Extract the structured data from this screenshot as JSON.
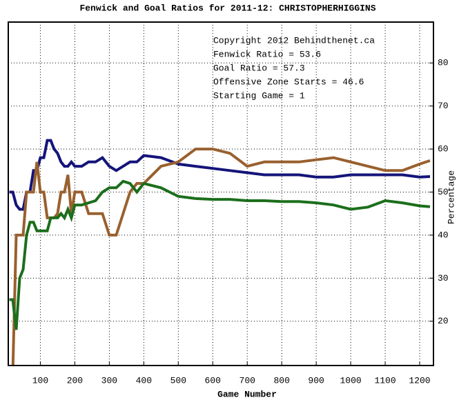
{
  "chart_data": {
    "type": "line",
    "title": "Fenwick and Goal Ratios for 2011-12: CHRISTOPHERHIGGINS",
    "x_label": "Game Number",
    "y_label": "Percentage",
    "annotations": [
      {
        "text": "Copyright 2012 Behindthenet.ca",
        "color": "#000000"
      },
      {
        "text": "Fenwick Ratio = 53.6",
        "color": "#14147a"
      },
      {
        "text": "Goal Ratio = 57.3",
        "color": "#99602e"
      },
      {
        "text": "Offensive Zone Starts = 46.6",
        "color": "#1c6e1c"
      },
      {
        "text": "Starting Game = 1",
        "color": "#000000"
      }
    ],
    "x": [
      10,
      20,
      30,
      40,
      50,
      60,
      70,
      80,
      90,
      100,
      110,
      120,
      130,
      140,
      150,
      160,
      170,
      180,
      190,
      200,
      220,
      240,
      260,
      280,
      300,
      320,
      340,
      360,
      380,
      400,
      450,
      500,
      550,
      600,
      650,
      700,
      750,
      800,
      850,
      900,
      950,
      1000,
      1050,
      1100,
      1150,
      1200,
      1230
    ],
    "series": [
      {
        "name": "Fenwick Ratio",
        "color": "#14147a",
        "values": [
          50,
          50,
          47,
          46,
          46,
          50,
          50,
          55,
          55,
          58,
          58,
          62,
          62,
          60,
          59,
          57,
          56,
          56,
          57,
          56,
          56,
          57,
          57,
          58,
          56,
          55,
          56,
          57,
          57,
          58.5,
          58,
          56.5,
          56,
          55.5,
          55,
          54.5,
          54,
          54,
          54,
          53.5,
          53.5,
          54,
          54,
          54,
          54,
          53.5,
          53.6
        ]
      },
      {
        "name": "Goal Ratio",
        "color": "#99602e",
        "values": [
          8,
          8,
          40,
          40,
          40,
          50,
          50,
          50,
          57,
          50,
          50,
          44,
          44,
          44,
          45,
          50,
          50,
          54,
          45,
          50,
          50,
          45,
          45,
          45,
          40,
          40,
          45,
          50,
          52,
          52,
          56,
          57,
          60,
          60,
          59,
          56,
          57,
          57,
          57,
          57.5,
          58,
          57,
          56,
          55,
          55,
          56.5,
          57.3
        ]
      },
      {
        "name": "Offensive Zone Starts",
        "color": "#1c6e1c",
        "values": [
          25,
          25,
          18,
          30,
          32,
          40,
          43,
          43,
          41,
          41,
          41,
          41,
          44,
          44,
          44,
          45,
          44,
          46,
          44,
          47,
          47,
          47.5,
          48,
          50,
          51,
          51,
          52.5,
          52,
          50,
          52,
          51,
          49,
          48.5,
          48.3,
          48.3,
          48,
          48,
          47.8,
          47.8,
          47.5,
          47,
          46,
          46.5,
          48,
          47.5,
          46.8,
          46.6
        ]
      }
    ],
    "xlim": [
      7,
      1240
    ],
    "ylim": [
      9.7,
      89.5
    ],
    "xticks": [
      100,
      200,
      300,
      400,
      500,
      600,
      700,
      800,
      900,
      1000,
      1100,
      1200
    ],
    "yticks": [
      20,
      30,
      40,
      50,
      60,
      70,
      80
    ],
    "grid": true
  }
}
